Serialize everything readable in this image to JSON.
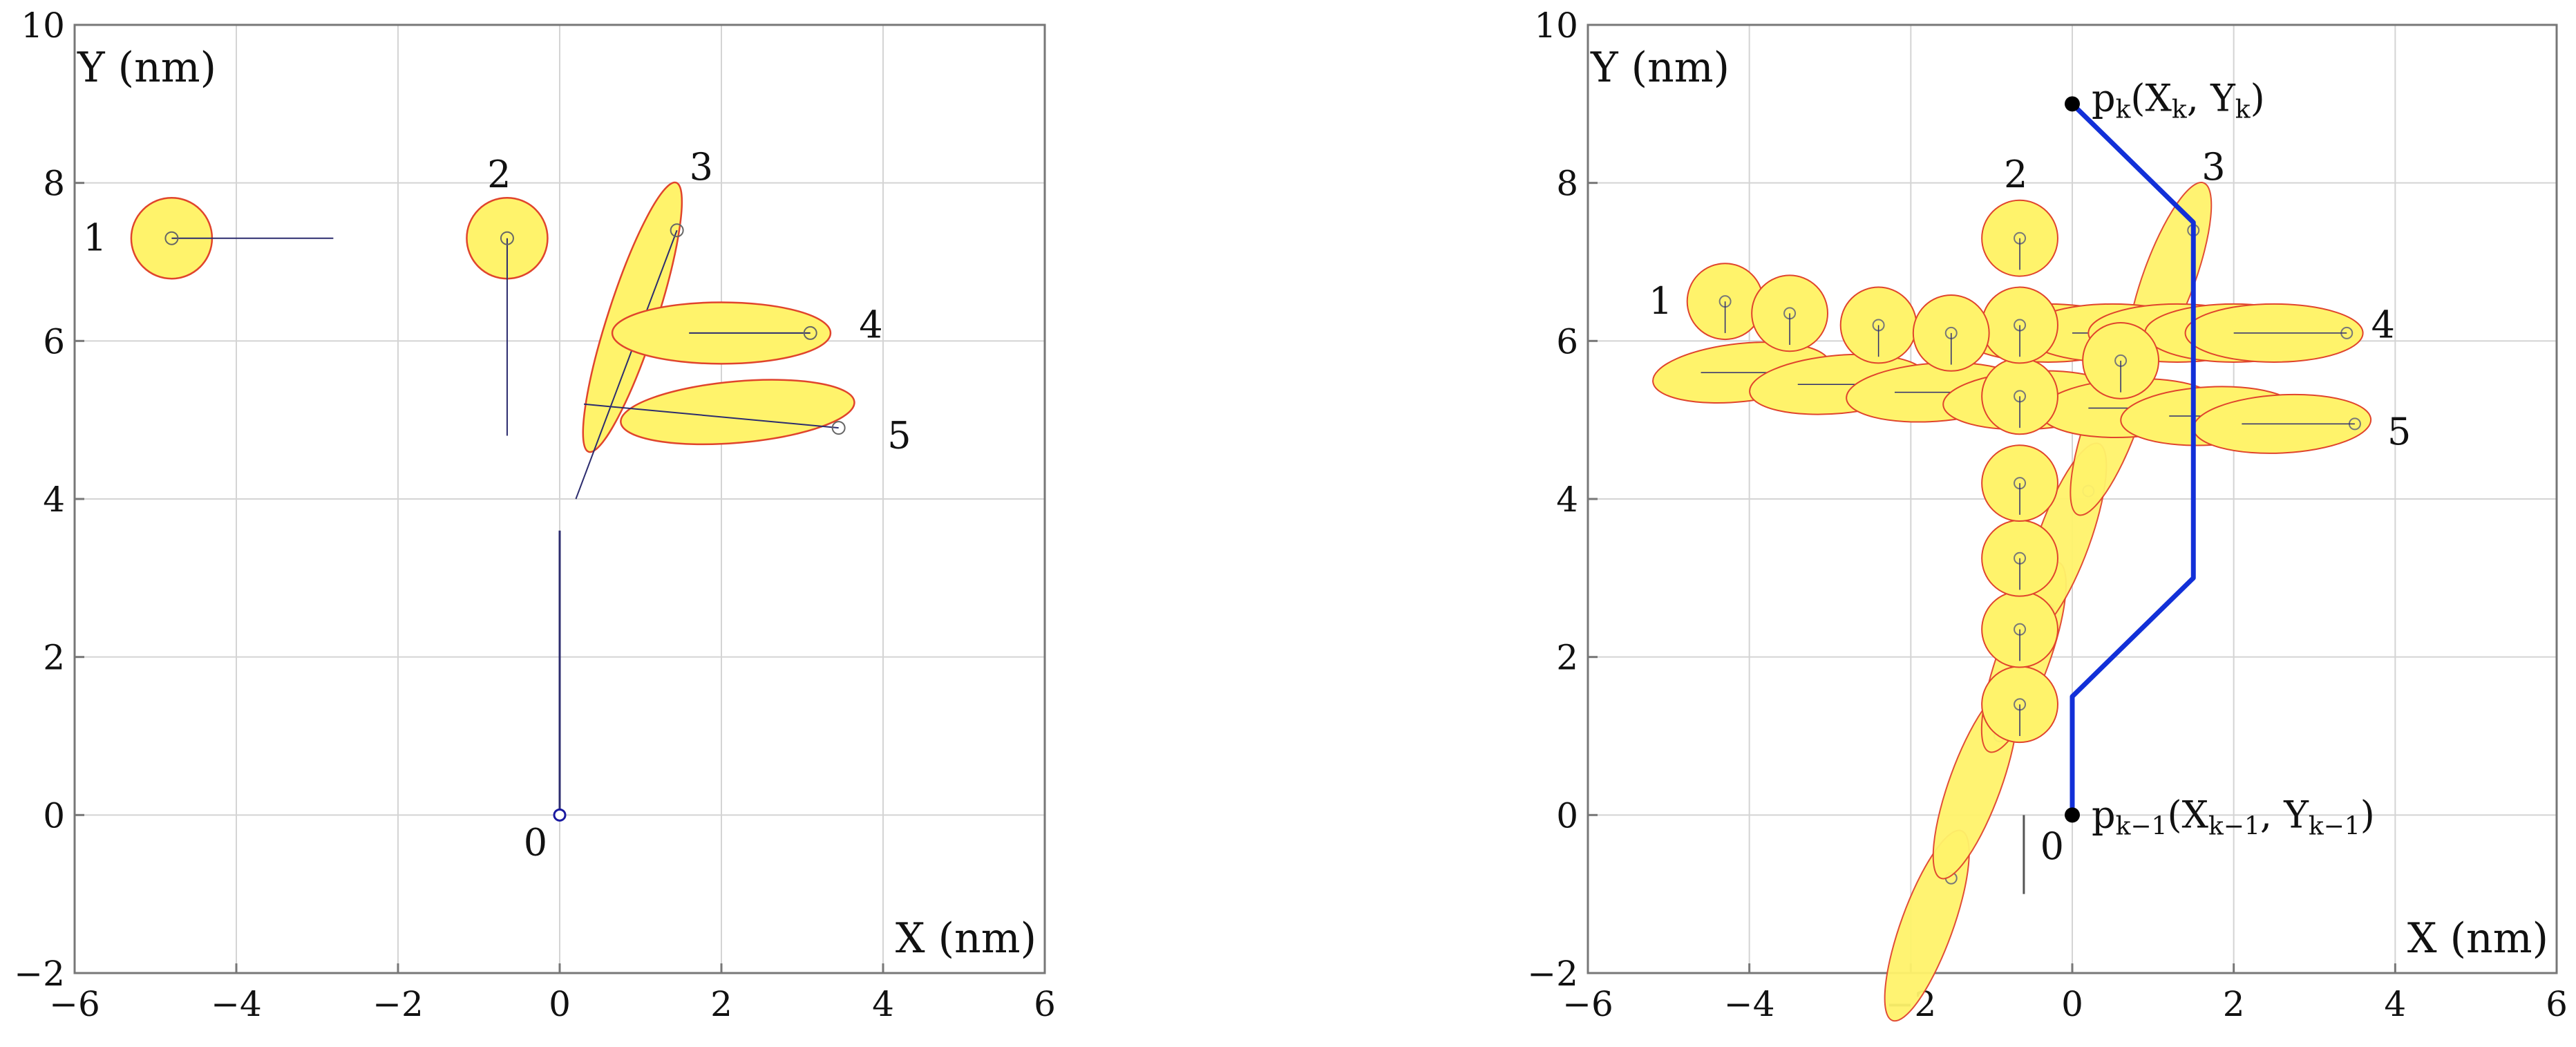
{
  "panels": [
    {
      "x_label": "X (nm)",
      "y_label": "Y (nm)",
      "xlim": [
        -6,
        6
      ],
      "ylim": [
        -2,
        10
      ],
      "x_ticks": [
        "−6",
        "−4",
        "−2",
        "0",
        "2",
        "4",
        "6"
      ],
      "y_ticks": [
        "−2",
        "0",
        "2",
        "4",
        "6",
        "8",
        "10"
      ],
      "grid": true,
      "objects": [
        {
          "label": "0",
          "type": "point",
          "center": [
            0,
            0
          ],
          "line_to": [
            0,
            3.6
          ],
          "label_at": [
            -0.3,
            -0.35
          ]
        },
        {
          "label": "1",
          "type": "circle",
          "center": [
            -4.8,
            7.3
          ],
          "r": 0.5,
          "line_to": [
            -2.8,
            7.3
          ],
          "label_at": [
            -5.75,
            7.3
          ]
        },
        {
          "label": "2",
          "type": "circle",
          "center": [
            -0.65,
            7.3
          ],
          "r": 0.5,
          "line_to": [
            -0.65,
            4.8
          ],
          "label_at": [
            -0.75,
            8.1
          ]
        },
        {
          "label": "3",
          "type": "ellipse",
          "center": [
            0.9,
            6.3
          ],
          "rx": 0.3,
          "ry": 1.75,
          "angle": 18,
          "dot": [
            1.45,
            7.4
          ],
          "line_to": [
            0.2,
            4.0
          ],
          "label_at": [
            1.75,
            8.2
          ]
        },
        {
          "label": "4",
          "type": "ellipse",
          "center": [
            2.0,
            6.1
          ],
          "rx": 1.35,
          "ry": 0.38,
          "angle": 0,
          "dot": [
            3.1,
            6.1
          ],
          "line_to": [
            1.6,
            6.1
          ],
          "label_at": [
            3.85,
            6.2
          ]
        },
        {
          "label": "5",
          "type": "ellipse",
          "center": [
            2.2,
            5.1
          ],
          "rx": 1.45,
          "ry": 0.38,
          "angle": -5,
          "dot": [
            3.45,
            4.9
          ],
          "line_to": [
            0.3,
            5.2
          ],
          "label_at": [
            4.2,
            4.8
          ]
        }
      ],
      "path": null
    },
    {
      "x_label": "X (nm)",
      "y_label": "Y (nm)",
      "xlim": [
        -6,
        6
      ],
      "ylim": [
        -2,
        10
      ],
      "x_ticks": [
        "−6",
        "−4",
        "−2",
        "0",
        "2",
        "4",
        "6"
      ],
      "y_ticks": [
        "−2",
        "0",
        "2",
        "4",
        "6",
        "8",
        "10"
      ],
      "grid": true,
      "objects": [
        {
          "label": "0",
          "type": "point",
          "center": [
            -0.6,
            0
          ],
          "line_to": [
            -0.6,
            -1.0
          ],
          "label_at": [
            -0.25,
            -0.4
          ],
          "hidden_marker": true
        },
        {
          "label": "1",
          "type": "trail",
          "label_at": [
            -5.1,
            6.5
          ]
        },
        {
          "label": "2",
          "type": "trail",
          "label_at": [
            -0.7,
            8.1
          ]
        },
        {
          "label": "3",
          "type": "trail",
          "label_at": [
            1.75,
            8.2
          ]
        },
        {
          "label": "4",
          "type": "trail",
          "label_at": [
            3.85,
            6.2
          ]
        },
        {
          "label": "5",
          "type": "trail",
          "label_at": [
            4.05,
            4.85
          ]
        }
      ],
      "trail_circles": [
        [
          -0.65,
          1.4
        ],
        [
          -0.65,
          2.35
        ],
        [
          -0.65,
          3.25
        ],
        [
          -0.65,
          4.2
        ],
        [
          -0.65,
          5.3
        ],
        [
          -0.65,
          6.2
        ],
        [
          -0.65,
          7.3
        ],
        [
          -4.3,
          6.5
        ],
        [
          -3.5,
          6.35
        ],
        [
          -2.4,
          6.2
        ],
        [
          -1.5,
          6.1
        ],
        [
          0.6,
          5.75
        ]
      ],
      "trail_ellipses_h": [
        [
          -4.1,
          5.6,
          -6
        ],
        [
          -2.9,
          5.45,
          -5
        ],
        [
          -1.7,
          5.35,
          -4
        ],
        [
          -0.5,
          5.25,
          -3
        ],
        [
          0.7,
          5.15,
          -3
        ],
        [
          1.7,
          5.05,
          -3
        ],
        [
          2.6,
          4.95,
          -3
        ],
        [
          -0.3,
          6.1,
          0
        ],
        [
          0.5,
          6.1,
          0
        ],
        [
          1.3,
          6.1,
          0
        ],
        [
          2.0,
          6.1,
          0
        ],
        [
          2.5,
          6.1,
          0
        ]
      ],
      "trail_ellipses_d": [
        [
          -1.8,
          -1.4
        ],
        [
          -1.2,
          0.4
        ],
        [
          -0.6,
          2.0
        ],
        [
          -0.1,
          3.5
        ],
        [
          0.5,
          5.0
        ],
        [
          1.2,
          6.8
        ]
      ],
      "path": {
        "points": [
          [
            0,
            0
          ],
          [
            0,
            1.5
          ],
          [
            1.5,
            3.0
          ],
          [
            1.5,
            7.5
          ],
          [
            0,
            9.0
          ]
        ],
        "color": "#1230d8",
        "start_label": "p",
        "start_sub": "k−1",
        "start_text_a": "(X",
        "start_text_sub_a": "k−1",
        "start_text_b": ", Y",
        "start_text_sub_b": "k−1",
        "start_text_c": ")",
        "end_label": "p",
        "end_sub": "k",
        "end_text_a": "(X",
        "end_text_sub_a": "k",
        "end_text_b": ", Y",
        "end_text_sub_b": "k",
        "end_text_c": ")"
      }
    }
  ],
  "colors": {
    "fill": "#fff36b",
    "edge": "#e0442c",
    "grid": "#d4d4d4",
    "frame": "#777777",
    "line": "#2c2c6e"
  }
}
